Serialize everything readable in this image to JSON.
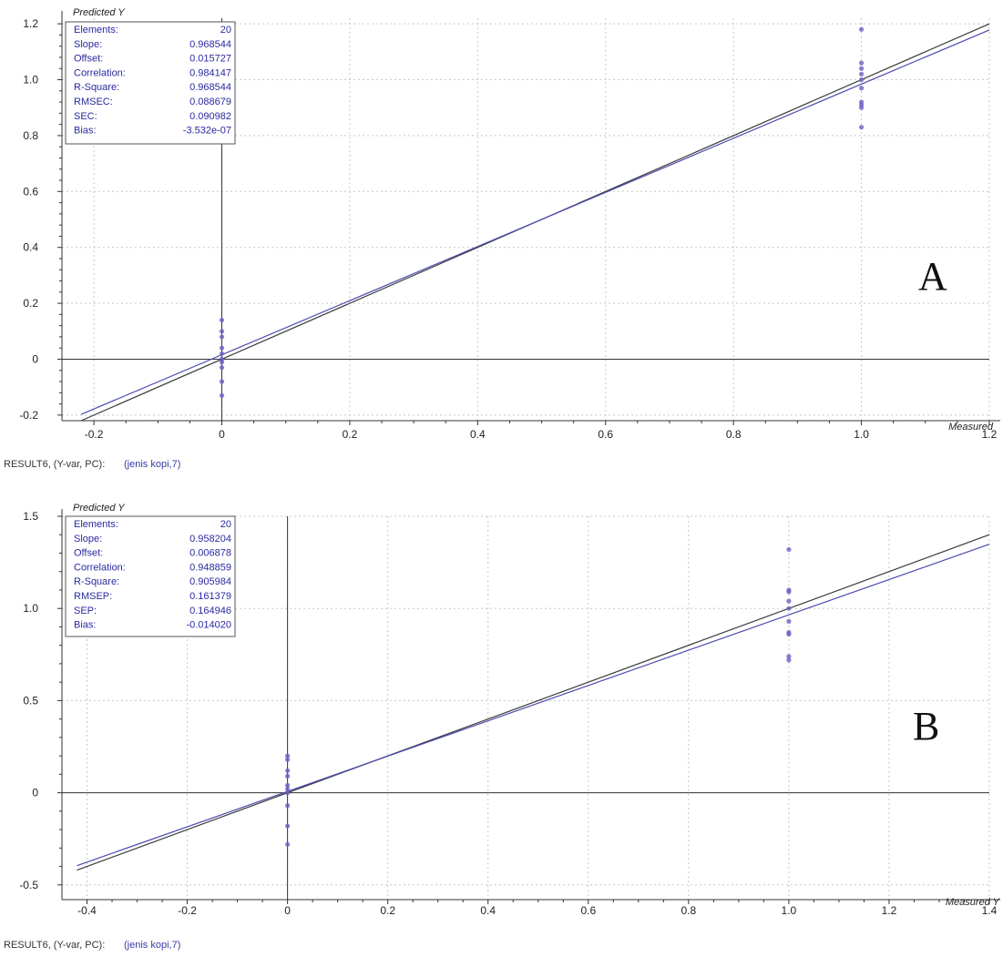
{
  "chart_data": [
    {
      "type": "scatter",
      "panel_label": "A",
      "ylabel": "Predicted Y",
      "xlabel": "Measured",
      "xlim": [
        -0.25,
        1.2
      ],
      "ylim": [
        -0.22,
        1.22
      ],
      "xticks": [
        -0.2,
        0,
        0.2,
        0.4,
        0.6,
        0.8,
        1.0,
        1.2
      ],
      "xtick_labels": [
        "-0.2",
        "0",
        "0.2",
        "0.4",
        "0.6",
        "0.8",
        "1.0",
        "1.2"
      ],
      "yticks": [
        -0.2,
        0,
        0.2,
        0.4,
        0.6,
        0.8,
        1.0,
        1.2
      ],
      "ytick_labels": [
        "-0.2",
        "0",
        "0.2",
        "0.4",
        "0.6",
        "0.8",
        "1.0",
        "1.2"
      ],
      "grid": true,
      "stats": [
        {
          "label": "Elements:",
          "value": "20"
        },
        {
          "label": "Slope:",
          "value": "0.968544"
        },
        {
          "label": "Offset:",
          "value": "0.015727"
        },
        {
          "label": "Correlation:",
          "value": "0.984147"
        },
        {
          "label": "R-Square:",
          "value": "0.968544"
        },
        {
          "label": "RMSEC:",
          "value": "0.088679"
        },
        {
          "label": "SEC:",
          "value": "0.090982"
        },
        {
          "label": "Bias:",
          "value": "-3.532e-07"
        }
      ],
      "lines": [
        {
          "role": "target",
          "slope": 1.0,
          "offset": 0.0
        },
        {
          "role": "regression",
          "slope": 0.968544,
          "offset": 0.015727
        }
      ],
      "points": [
        {
          "x": 0,
          "y": 0.14
        },
        {
          "x": 0,
          "y": 0.1
        },
        {
          "x": 0,
          "y": 0.08
        },
        {
          "x": 0,
          "y": 0.04
        },
        {
          "x": 0,
          "y": 0.02
        },
        {
          "x": 0,
          "y": 0.0
        },
        {
          "x": 0,
          "y": -0.01
        },
        {
          "x": 0,
          "y": -0.03
        },
        {
          "x": 0,
          "y": -0.08
        },
        {
          "x": 0,
          "y": -0.13
        },
        {
          "x": 1,
          "y": 1.18
        },
        {
          "x": 1,
          "y": 1.06
        },
        {
          "x": 1,
          "y": 1.04
        },
        {
          "x": 1,
          "y": 1.02
        },
        {
          "x": 1,
          "y": 1.0
        },
        {
          "x": 1,
          "y": 0.97
        },
        {
          "x": 1,
          "y": 0.92
        },
        {
          "x": 1,
          "y": 0.91
        },
        {
          "x": 1,
          "y": 0.9
        },
        {
          "x": 1,
          "y": 0.83
        }
      ],
      "footer": {
        "prefix": "RESULT6, (Y-var, PC):",
        "link": "(jenis  kopi,7)"
      }
    },
    {
      "type": "scatter",
      "panel_label": "B",
      "ylabel": "Predicted Y",
      "xlabel": "Measured Y",
      "xlim": [
        -0.45,
        1.4
      ],
      "ylim": [
        -0.58,
        1.5
      ],
      "xticks": [
        -0.4,
        -0.2,
        0,
        0.2,
        0.4,
        0.6,
        0.8,
        1.0,
        1.2,
        1.4
      ],
      "xtick_labels": [
        "-0.4",
        "-0.2",
        "0",
        "0.2",
        "0.4",
        "0.6",
        "0.8",
        "1.0",
        "1.2",
        "1.4"
      ],
      "yticks": [
        -0.5,
        0,
        0.5,
        1.0,
        1.5
      ],
      "ytick_labels": [
        "-0.5",
        "0",
        "0.5",
        "1.0",
        "1.5"
      ],
      "grid": true,
      "stats": [
        {
          "label": "Elements:",
          "value": "20"
        },
        {
          "label": "Slope:",
          "value": "0.958204"
        },
        {
          "label": "Offset:",
          "value": "0.006878"
        },
        {
          "label": "Correlation:",
          "value": "0.948859"
        },
        {
          "label": "R-Square:",
          "value": "0.905984"
        },
        {
          "label": "RMSEP:",
          "value": "0.161379"
        },
        {
          "label": "SEP:",
          "value": "0.164946"
        },
        {
          "label": "Bias:",
          "value": "-0.014020"
        }
      ],
      "lines": [
        {
          "role": "target",
          "slope": 1.0,
          "offset": 0.0
        },
        {
          "role": "regression",
          "slope": 0.958204,
          "offset": 0.006878
        }
      ],
      "points": [
        {
          "x": 0,
          "y": 0.2
        },
        {
          "x": 0,
          "y": 0.18
        },
        {
          "x": 0,
          "y": 0.12
        },
        {
          "x": 0,
          "y": 0.09
        },
        {
          "x": 0,
          "y": 0.04
        },
        {
          "x": 0,
          "y": 0.02
        },
        {
          "x": 0,
          "y": 0.0
        },
        {
          "x": 0,
          "y": -0.07
        },
        {
          "x": 0,
          "y": -0.18
        },
        {
          "x": 0,
          "y": -0.28
        },
        {
          "x": 1,
          "y": 1.32
        },
        {
          "x": 1,
          "y": 1.1
        },
        {
          "x": 1,
          "y": 1.09
        },
        {
          "x": 1,
          "y": 1.04
        },
        {
          "x": 1,
          "y": 1.0
        },
        {
          "x": 1,
          "y": 0.93
        },
        {
          "x": 1,
          "y": 0.87
        },
        {
          "x": 1,
          "y": 0.86
        },
        {
          "x": 1,
          "y": 0.74
        },
        {
          "x": 1,
          "y": 0.72
        }
      ],
      "footer": {
        "prefix": "RESULT6, (Y-var, PC):",
        "link": "(jenis  kopi,7)"
      }
    }
  ],
  "colors": {
    "target_line": "#3a3a3a",
    "regression_line": "#4b4bb0",
    "points": "#6a5fc4",
    "grid": "#c8c8c8",
    "axis": "#333333",
    "stats_text": "#2a2aa0"
  }
}
